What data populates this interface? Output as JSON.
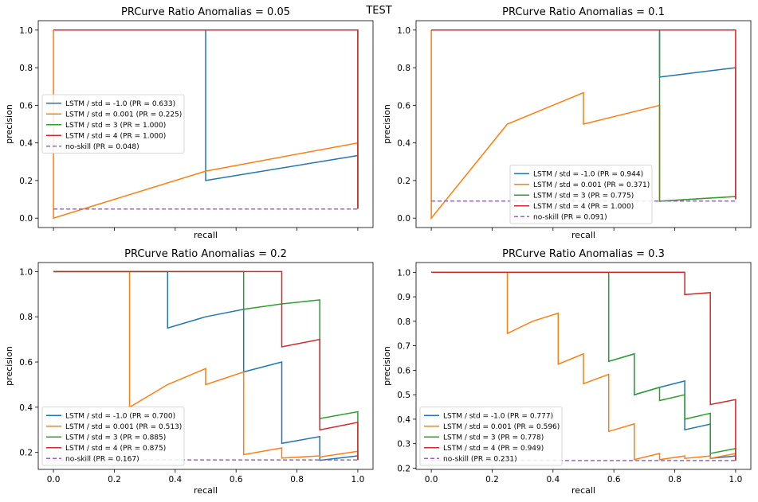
{
  "suptitle": "TEST",
  "chart_data": [
    {
      "type": "line",
      "title": "PRCurve Ratio Anomalias = 0.05",
      "xlabel": "recall",
      "ylabel": "precision",
      "xlim": [
        -0.05,
        1.05
      ],
      "ylim": [
        -0.05,
        1.05
      ],
      "xticks": [
        0.0,
        0.2,
        0.4,
        0.6,
        0.8,
        1.0
      ],
      "yticks": [
        0.0,
        0.2,
        0.4,
        0.6,
        0.8,
        1.0
      ],
      "show_xticklabels": false,
      "legend_position": "center-left",
      "series": [
        {
          "name": "LSTM / std = -1.0 (PR = 0.633)",
          "color": "#1f77b4",
          "x": [
            0,
            0.5,
            0.5,
            1,
            1
          ],
          "y": [
            1,
            1,
            0.2,
            0.333,
            0.05
          ]
        },
        {
          "name": "LSTM / std = 0.001 (PR = 0.225)",
          "color": "#ff7f0e",
          "x": [
            0,
            0,
            0.5,
            1,
            1
          ],
          "y": [
            1,
            0,
            0.25,
            0.4,
            0.05
          ]
        },
        {
          "name": "LSTM / std = 3 (PR = 1.000)",
          "color": "#2ca02c",
          "x": [
            0,
            1,
            1
          ],
          "y": [
            1,
            1,
            0.05
          ]
        },
        {
          "name": "LSTM / std = 4 (PR = 1.000)",
          "color": "#d62728",
          "x": [
            0,
            1,
            1
          ],
          "y": [
            1,
            1,
            0.05
          ]
        },
        {
          "name": "no-skill (PR = 0.048)",
          "color": "#9467bd",
          "dashed": true,
          "x": [
            0,
            1
          ],
          "y": [
            0.048,
            0.048
          ]
        }
      ]
    },
    {
      "type": "line",
      "title": "PRCurve Ratio Anomalias = 0.1",
      "xlabel": "recall",
      "ylabel": "precision",
      "xlim": [
        -0.05,
        1.05
      ],
      "ylim": [
        -0.05,
        1.05
      ],
      "xticks": [
        0.0,
        0.2,
        0.4,
        0.6,
        0.8,
        1.0
      ],
      "yticks": [
        0.0,
        0.2,
        0.4,
        0.6,
        0.8,
        1.0
      ],
      "show_xticklabels": false,
      "legend_position": "lower-center",
      "series": [
        {
          "name": "LSTM / std = -1.0 (PR = 0.944)",
          "color": "#1f77b4",
          "x": [
            0,
            0.75,
            0.75,
            1,
            1
          ],
          "y": [
            1,
            1,
            0.75,
            0.8,
            0.1
          ]
        },
        {
          "name": "LSTM / std = 0.001 (PR = 0.371)",
          "color": "#ff7f0e",
          "x": [
            0,
            0,
            0.25,
            0.5,
            0.5,
            0.75,
            0.75,
            1,
            1
          ],
          "y": [
            1,
            0,
            0.5,
            0.667,
            0.5,
            0.6,
            0.09,
            0.115,
            0.1
          ]
        },
        {
          "name": "LSTM / std = 3 (PR = 0.775)",
          "color": "#2ca02c",
          "x": [
            0,
            0.75,
            0.75,
            1,
            1
          ],
          "y": [
            1,
            1,
            0.09,
            0.115,
            0.1
          ]
        },
        {
          "name": "LSTM / std = 4 (PR = 1.000)",
          "color": "#d62728",
          "x": [
            0,
            1,
            1
          ],
          "y": [
            1,
            1,
            0.1
          ]
        },
        {
          "name": "no-skill (PR = 0.091)",
          "color": "#9467bd",
          "dashed": true,
          "x": [
            0,
            1
          ],
          "y": [
            0.091,
            0.091
          ]
        }
      ]
    },
    {
      "type": "line",
      "title": "PRCurve Ratio Anomalias = 0.2",
      "xlabel": "recall",
      "ylabel": "precision",
      "xlim": [
        -0.05,
        1.05
      ],
      "ylim": [
        0.125,
        1.04
      ],
      "xticks": [
        0.0,
        0.2,
        0.4,
        0.6,
        0.8,
        1.0
      ],
      "yticks": [
        0.2,
        0.4,
        0.6,
        0.8,
        1.0
      ],
      "show_xticklabels": true,
      "legend_position": "lower-left",
      "series": [
        {
          "name": "LSTM / std = -1.0 (PR = 0.700)",
          "color": "#1f77b4",
          "x": [
            0,
            0.375,
            0.375,
            0.5,
            0.625,
            0.625,
            0.75,
            0.75,
            0.875,
            0.875,
            1,
            1
          ],
          "y": [
            1,
            1,
            0.75,
            0.8,
            0.833,
            0.556,
            0.6,
            0.24,
            0.27,
            0.165,
            0.185,
            0.167
          ]
        },
        {
          "name": "LSTM / std = 0.001 (PR = 0.513)",
          "color": "#ff7f0e",
          "x": [
            0,
            0.25,
            0.25,
            0.375,
            0.5,
            0.5,
            0.625,
            0.625,
            0.75,
            0.75,
            0.875,
            0.875,
            1,
            1
          ],
          "y": [
            1,
            1,
            0.4,
            0.5,
            0.571,
            0.5,
            0.556,
            0.19,
            0.22,
            0.175,
            0.185,
            0.18,
            0.205,
            0.167
          ]
        },
        {
          "name": "LSTM / std = 3 (PR = 0.885)",
          "color": "#2ca02c",
          "x": [
            0,
            0.625,
            0.625,
            0.75,
            0.875,
            0.875,
            1,
            1
          ],
          "y": [
            1,
            1,
            0.833,
            0.857,
            0.875,
            0.35,
            0.38,
            0.167
          ]
        },
        {
          "name": "LSTM / std = 4 (PR = 0.875)",
          "color": "#d62728",
          "x": [
            0,
            0.75,
            0.75,
            0.875,
            0.875,
            1,
            1
          ],
          "y": [
            1,
            1,
            0.667,
            0.7,
            0.3,
            0.333,
            0.167
          ]
        },
        {
          "name": "no-skill (PR = 0.167)",
          "color": "#9467bd",
          "dashed": true,
          "x": [
            0,
            1
          ],
          "y": [
            0.167,
            0.167
          ]
        }
      ]
    },
    {
      "type": "line",
      "title": "PRCurve Ratio Anomalias = 0.3",
      "xlabel": "recall",
      "ylabel": "precision",
      "xlim": [
        -0.05,
        1.05
      ],
      "ylim": [
        0.195,
        1.04
      ],
      "xticks": [
        0.0,
        0.2,
        0.4,
        0.6,
        0.8,
        1.0
      ],
      "yticks": [
        0.2,
        0.3,
        0.4,
        0.5,
        0.6,
        0.7,
        0.8,
        0.9,
        1.0
      ],
      "show_xticklabels": true,
      "legend_position": "lower-left",
      "series": [
        {
          "name": "LSTM / std = -1.0 (PR = 0.777)",
          "color": "#1f77b4",
          "x": [
            0,
            0.583,
            0.583,
            0.667,
            0.667,
            0.75,
            0.833,
            0.833,
            0.917,
            0.917,
            1,
            1
          ],
          "y": [
            1,
            1,
            0.636,
            0.667,
            0.5,
            0.53,
            0.556,
            0.357,
            0.38,
            0.24,
            0.25,
            0.231
          ]
        },
        {
          "name": "LSTM / std = 0.001 (PR = 0.596)",
          "color": "#ff7f0e",
          "x": [
            0,
            0.25,
            0.25,
            0.333,
            0.417,
            0.417,
            0.5,
            0.5,
            0.583,
            0.583,
            0.667,
            0.667,
            0.75,
            0.75,
            0.833,
            0.833,
            0.917,
            0.917,
            1,
            1
          ],
          "y": [
            1,
            1,
            0.75,
            0.8,
            0.833,
            0.625,
            0.667,
            0.545,
            0.583,
            0.35,
            0.381,
            0.235,
            0.26,
            0.235,
            0.25,
            0.24,
            0.25,
            0.24,
            0.26,
            0.231
          ]
        },
        {
          "name": "LSTM / std = 3 (PR = 0.778)",
          "color": "#2ca02c",
          "x": [
            0,
            0.583,
            0.583,
            0.667,
            0.667,
            0.75,
            0.75,
            0.833,
            0.833,
            0.917,
            0.917,
            1,
            1
          ],
          "y": [
            1,
            1,
            0.636,
            0.667,
            0.5,
            0.53,
            0.476,
            0.5,
            0.4,
            0.424,
            0.26,
            0.28,
            0.231
          ]
        },
        {
          "name": "LSTM / std = 4 (PR = 0.949)",
          "color": "#d62728",
          "x": [
            0,
            0.833,
            0.833,
            0.917,
            0.917,
            1,
            1
          ],
          "y": [
            1,
            1,
            0.909,
            0.917,
            0.46,
            0.48,
            0.231
          ]
        },
        {
          "name": "no-skill (PR = 0.231)",
          "color": "#9467bd",
          "dashed": true,
          "x": [
            0,
            1
          ],
          "y": [
            0.231,
            0.231
          ]
        }
      ]
    }
  ]
}
